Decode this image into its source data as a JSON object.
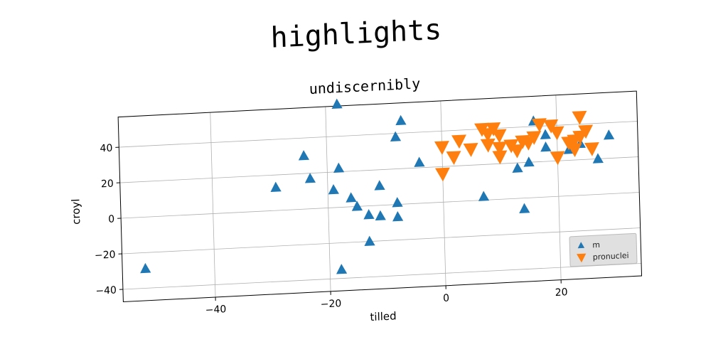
{
  "chart_data": {
    "type": "scatter",
    "suptitle": "highlights",
    "title": "undiscernibly",
    "xlabel": "tilled",
    "ylabel": "croyl",
    "xlim": [
      -56,
      34
    ],
    "ylim": [
      -47,
      57
    ],
    "xticks": [
      -40,
      -20,
      0,
      20
    ],
    "xtick_labels": [
      "−40",
      "−20",
      "0",
      "20"
    ],
    "yticks": [
      -40,
      -20,
      0,
      20,
      40
    ],
    "ytick_labels": [
      "−40",
      "−20",
      "0",
      "20",
      "40"
    ],
    "grid": true,
    "legend_position": "lower-right",
    "series": [
      {
        "name": "m",
        "marker": "triangle-up",
        "color": "#1f77b4",
        "points": [
          [
            -52,
            -29
          ],
          [
            -29,
            13
          ],
          [
            -24,
            30
          ],
          [
            -23,
            17
          ],
          [
            -18,
            58
          ],
          [
            -18,
            22
          ],
          [
            -19,
            10
          ],
          [
            -18,
            -35
          ],
          [
            -16,
            5
          ],
          [
            -15,
            0
          ],
          [
            -13,
            -5
          ],
          [
            -13,
            -20
          ],
          [
            -11,
            11
          ],
          [
            -11,
            -6
          ],
          [
            -8,
            1
          ],
          [
            -8,
            -7
          ],
          [
            -8,
            38
          ],
          [
            -7,
            47
          ],
          [
            -4,
            23
          ],
          [
            7,
            2
          ],
          [
            13,
            17
          ],
          [
            14,
            -6
          ],
          [
            15,
            20
          ],
          [
            16,
            43
          ],
          [
            18,
            35
          ],
          [
            18,
            28
          ],
          [
            22,
            26
          ],
          [
            24,
            29
          ],
          [
            27,
            20
          ],
          [
            29,
            33
          ]
        ]
      },
      {
        "name": "pronuclei",
        "marker": "triangle-down",
        "color": "#ff7f0e",
        "points": [
          [
            0,
            16
          ],
          [
            0,
            31
          ],
          [
            2,
            25
          ],
          [
            3,
            34
          ],
          [
            5,
            29
          ],
          [
            7,
            40
          ],
          [
            8,
            31
          ],
          [
            8,
            37
          ],
          [
            9,
            40
          ],
          [
            10,
            36
          ],
          [
            10,
            24
          ],
          [
            10,
            29
          ],
          [
            12,
            30
          ],
          [
            13,
            27
          ],
          [
            14,
            32
          ],
          [
            15,
            31
          ],
          [
            16,
            34
          ],
          [
            17,
            41
          ],
          [
            19,
            40
          ],
          [
            20,
            36
          ],
          [
            20,
            22
          ],
          [
            22,
            30
          ],
          [
            23,
            26
          ],
          [
            23,
            31
          ],
          [
            24,
            33
          ],
          [
            24,
            44
          ],
          [
            25,
            36
          ],
          [
            26,
            26
          ]
        ]
      }
    ]
  }
}
